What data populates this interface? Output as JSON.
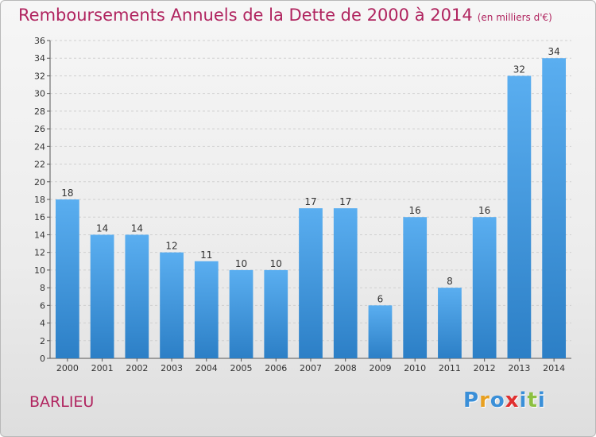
{
  "chart_data": {
    "type": "bar",
    "title": "Remboursements Annuels de la Dette de 2000 à 2014",
    "subtitle": "(en milliers d'€)",
    "categories": [
      "2000",
      "2001",
      "2002",
      "2003",
      "2004",
      "2005",
      "2006",
      "2007",
      "2008",
      "2009",
      "2010",
      "2011",
      "2012",
      "2013",
      "2014"
    ],
    "values": [
      18,
      14,
      14,
      12,
      11,
      10,
      10,
      17,
      17,
      6,
      16,
      8,
      16,
      32,
      34
    ],
    "ylim": [
      0,
      36
    ],
    "ytick_step": 2,
    "grid": true,
    "bar_color": "#3a8fd8"
  },
  "footer": {
    "commune": "BARLIEU",
    "logo_letters": [
      {
        "char": "P",
        "color": "#3a8fd8"
      },
      {
        "char": "r",
        "color": "#e8a020"
      },
      {
        "char": "o",
        "color": "#3a8fd8"
      },
      {
        "char": "x",
        "color": "#e03030"
      },
      {
        "char": "i",
        "color": "#3a8fd8"
      },
      {
        "char": "t",
        "color": "#8cc040"
      },
      {
        "char": "i",
        "color": "#3a8fd8"
      }
    ]
  },
  "colors": {
    "title": "#b0245f"
  }
}
